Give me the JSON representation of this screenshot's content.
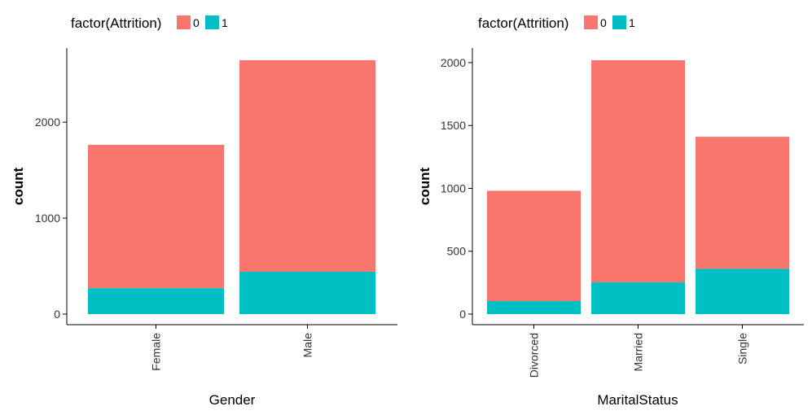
{
  "colors": {
    "class_0": "#F8766D",
    "class_1": "#00BFC4",
    "axis": "#000000",
    "tick_text": "#333333"
  },
  "chart_data": [
    {
      "type": "bar",
      "stacked": true,
      "title": "",
      "xlabel": "Gender",
      "ylabel": "count",
      "categories": [
        "Female",
        "Male"
      ],
      "series": [
        {
          "name": "0",
          "values": [
            1494,
            2205
          ]
        },
        {
          "name": "1",
          "values": [
            270,
            441
          ]
        }
      ],
      "ylim": [
        0,
        2646
      ],
      "yticks": [
        0,
        1000,
        2000
      ],
      "ytick_labels": [
        "0",
        "1000",
        "2000"
      ],
      "legend": {
        "title": "factor(Attrition)",
        "position": "top-left",
        "entries": [
          "0",
          "1"
        ]
      },
      "grid": false
    },
    {
      "type": "bar",
      "stacked": true,
      "title": "",
      "xlabel": "MaritalStatus",
      "ylabel": "count",
      "categories": [
        "Divorced",
        "Married",
        "Single"
      ],
      "series": [
        {
          "name": "0",
          "values": [
            878,
            1767,
            1050
          ]
        },
        {
          "name": "1",
          "values": [
            103,
            252,
            360
          ]
        }
      ],
      "ylim": [
        0,
        2019
      ],
      "yticks": [
        0,
        500,
        1000,
        1500,
        2000
      ],
      "ytick_labels": [
        "0",
        "500",
        "1000",
        "1500",
        "2000"
      ],
      "legend": {
        "title": "factor(Attrition)",
        "position": "top-left",
        "entries": [
          "0",
          "1"
        ]
      },
      "grid": false
    }
  ]
}
